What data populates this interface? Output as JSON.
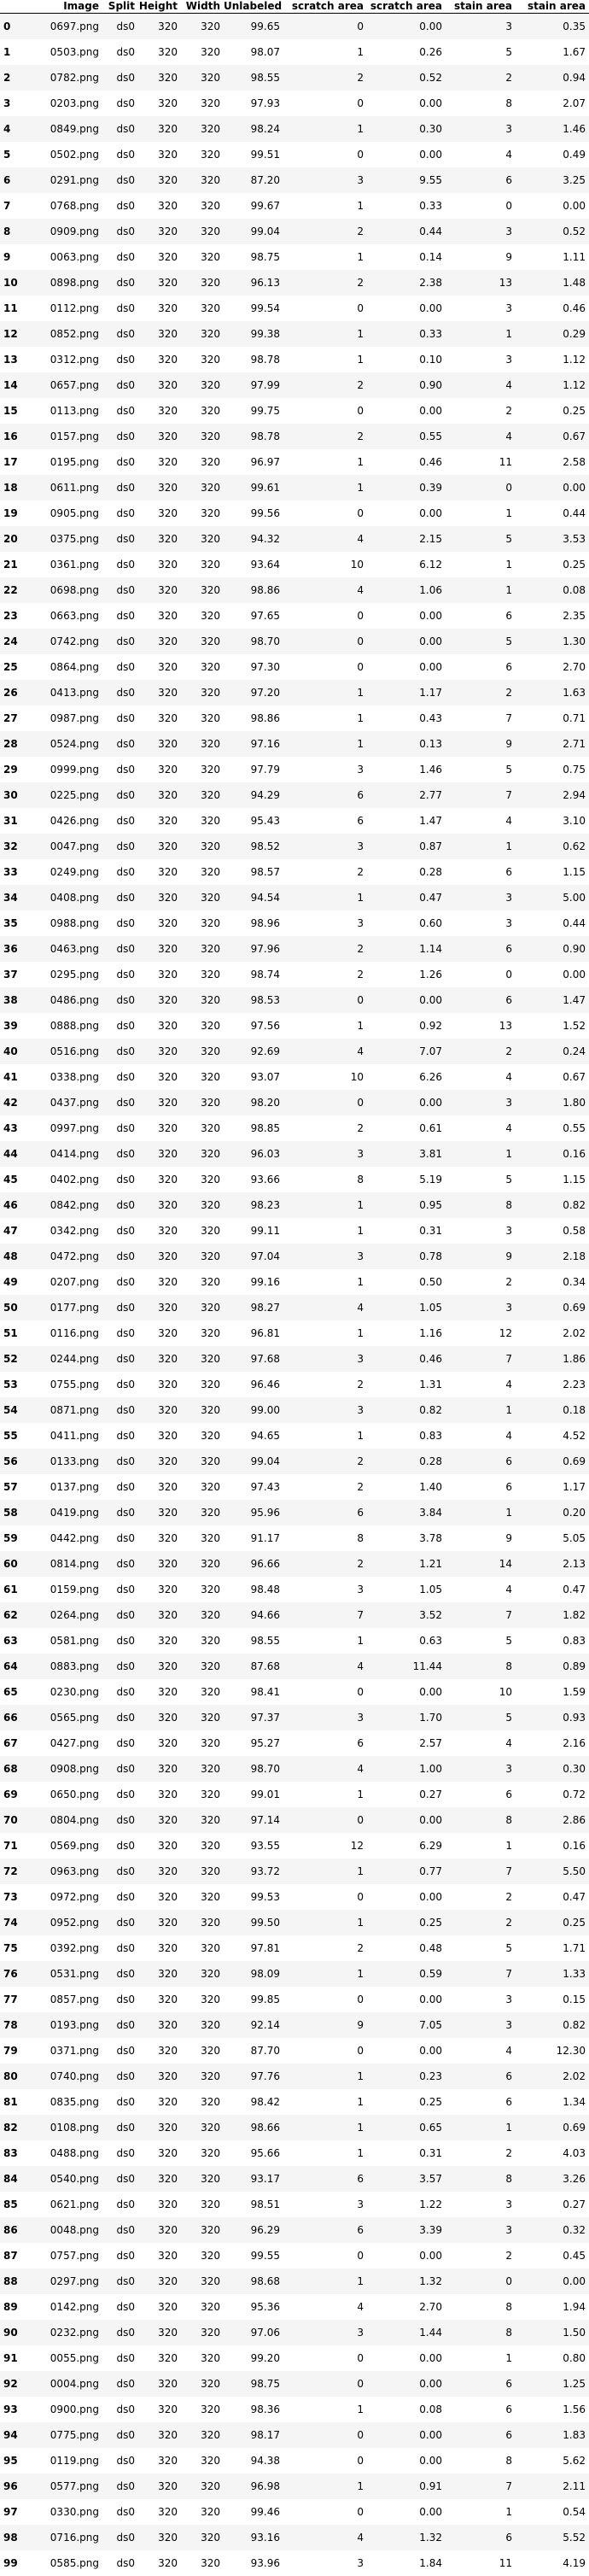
{
  "columns": [
    "",
    "Image",
    "Split",
    "Height",
    "Width",
    "Unlabeled",
    "scratch area",
    "scratch area",
    "stain area",
    "stain area"
  ],
  "rows": [
    [
      "0",
      "0697.png",
      "ds0",
      "320",
      "320",
      "99.65",
      "0",
      "0.00",
      "3",
      "0.35"
    ],
    [
      "1",
      "0503.png",
      "ds0",
      "320",
      "320",
      "98.07",
      "1",
      "0.26",
      "5",
      "1.67"
    ],
    [
      "2",
      "0782.png",
      "ds0",
      "320",
      "320",
      "98.55",
      "2",
      "0.52",
      "2",
      "0.94"
    ],
    [
      "3",
      "0203.png",
      "ds0",
      "320",
      "320",
      "97.93",
      "0",
      "0.00",
      "8",
      "2.07"
    ],
    [
      "4",
      "0849.png",
      "ds0",
      "320",
      "320",
      "98.24",
      "1",
      "0.30",
      "3",
      "1.46"
    ],
    [
      "5",
      "0502.png",
      "ds0",
      "320",
      "320",
      "99.51",
      "0",
      "0.00",
      "4",
      "0.49"
    ],
    [
      "6",
      "0291.png",
      "ds0",
      "320",
      "320",
      "87.20",
      "3",
      "9.55",
      "6",
      "3.25"
    ],
    [
      "7",
      "0768.png",
      "ds0",
      "320",
      "320",
      "99.67",
      "1",
      "0.33",
      "0",
      "0.00"
    ],
    [
      "8",
      "0909.png",
      "ds0",
      "320",
      "320",
      "99.04",
      "2",
      "0.44",
      "3",
      "0.52"
    ],
    [
      "9",
      "0063.png",
      "ds0",
      "320",
      "320",
      "98.75",
      "1",
      "0.14",
      "9",
      "1.11"
    ],
    [
      "10",
      "0898.png",
      "ds0",
      "320",
      "320",
      "96.13",
      "2",
      "2.38",
      "13",
      "1.48"
    ],
    [
      "11",
      "0112.png",
      "ds0",
      "320",
      "320",
      "99.54",
      "0",
      "0.00",
      "3",
      "0.46"
    ],
    [
      "12",
      "0852.png",
      "ds0",
      "320",
      "320",
      "99.38",
      "1",
      "0.33",
      "1",
      "0.29"
    ],
    [
      "13",
      "0312.png",
      "ds0",
      "320",
      "320",
      "98.78",
      "1",
      "0.10",
      "3",
      "1.12"
    ],
    [
      "14",
      "0657.png",
      "ds0",
      "320",
      "320",
      "97.99",
      "2",
      "0.90",
      "4",
      "1.12"
    ],
    [
      "15",
      "0113.png",
      "ds0",
      "320",
      "320",
      "99.75",
      "0",
      "0.00",
      "2",
      "0.25"
    ],
    [
      "16",
      "0157.png",
      "ds0",
      "320",
      "320",
      "98.78",
      "2",
      "0.55",
      "4",
      "0.67"
    ],
    [
      "17",
      "0195.png",
      "ds0",
      "320",
      "320",
      "96.97",
      "1",
      "0.46",
      "11",
      "2.58"
    ],
    [
      "18",
      "0611.png",
      "ds0",
      "320",
      "320",
      "99.61",
      "1",
      "0.39",
      "0",
      "0.00"
    ],
    [
      "19",
      "0905.png",
      "ds0",
      "320",
      "320",
      "99.56",
      "0",
      "0.00",
      "1",
      "0.44"
    ],
    [
      "20",
      "0375.png",
      "ds0",
      "320",
      "320",
      "94.32",
      "4",
      "2.15",
      "5",
      "3.53"
    ],
    [
      "21",
      "0361.png",
      "ds0",
      "320",
      "320",
      "93.64",
      "10",
      "6.12",
      "1",
      "0.25"
    ],
    [
      "22",
      "0698.png",
      "ds0",
      "320",
      "320",
      "98.86",
      "4",
      "1.06",
      "1",
      "0.08"
    ],
    [
      "23",
      "0663.png",
      "ds0",
      "320",
      "320",
      "97.65",
      "0",
      "0.00",
      "6",
      "2.35"
    ],
    [
      "24",
      "0742.png",
      "ds0",
      "320",
      "320",
      "98.70",
      "0",
      "0.00",
      "5",
      "1.30"
    ],
    [
      "25",
      "0864.png",
      "ds0",
      "320",
      "320",
      "97.30",
      "0",
      "0.00",
      "6",
      "2.70"
    ],
    [
      "26",
      "0413.png",
      "ds0",
      "320",
      "320",
      "97.20",
      "1",
      "1.17",
      "2",
      "1.63"
    ],
    [
      "27",
      "0987.png",
      "ds0",
      "320",
      "320",
      "98.86",
      "1",
      "0.43",
      "7",
      "0.71"
    ],
    [
      "28",
      "0524.png",
      "ds0",
      "320",
      "320",
      "97.16",
      "1",
      "0.13",
      "9",
      "2.71"
    ],
    [
      "29",
      "0999.png",
      "ds0",
      "320",
      "320",
      "97.79",
      "3",
      "1.46",
      "5",
      "0.75"
    ],
    [
      "30",
      "0225.png",
      "ds0",
      "320",
      "320",
      "94.29",
      "6",
      "2.77",
      "7",
      "2.94"
    ],
    [
      "31",
      "0426.png",
      "ds0",
      "320",
      "320",
      "95.43",
      "6",
      "1.47",
      "4",
      "3.10"
    ],
    [
      "32",
      "0047.png",
      "ds0",
      "320",
      "320",
      "98.52",
      "3",
      "0.87",
      "1",
      "0.62"
    ],
    [
      "33",
      "0249.png",
      "ds0",
      "320",
      "320",
      "98.57",
      "2",
      "0.28",
      "6",
      "1.15"
    ],
    [
      "34",
      "0408.png",
      "ds0",
      "320",
      "320",
      "94.54",
      "1",
      "0.47",
      "3",
      "5.00"
    ],
    [
      "35",
      "0988.png",
      "ds0",
      "320",
      "320",
      "98.96",
      "3",
      "0.60",
      "3",
      "0.44"
    ],
    [
      "36",
      "0463.png",
      "ds0",
      "320",
      "320",
      "97.96",
      "2",
      "1.14",
      "6",
      "0.90"
    ],
    [
      "37",
      "0295.png",
      "ds0",
      "320",
      "320",
      "98.74",
      "2",
      "1.26",
      "0",
      "0.00"
    ],
    [
      "38",
      "0486.png",
      "ds0",
      "320",
      "320",
      "98.53",
      "0",
      "0.00",
      "6",
      "1.47"
    ],
    [
      "39",
      "0888.png",
      "ds0",
      "320",
      "320",
      "97.56",
      "1",
      "0.92",
      "13",
      "1.52"
    ],
    [
      "40",
      "0516.png",
      "ds0",
      "320",
      "320",
      "92.69",
      "4",
      "7.07",
      "2",
      "0.24"
    ],
    [
      "41",
      "0338.png",
      "ds0",
      "320",
      "320",
      "93.07",
      "10",
      "6.26",
      "4",
      "0.67"
    ],
    [
      "42",
      "0437.png",
      "ds0",
      "320",
      "320",
      "98.20",
      "0",
      "0.00",
      "3",
      "1.80"
    ],
    [
      "43",
      "0997.png",
      "ds0",
      "320",
      "320",
      "98.85",
      "2",
      "0.61",
      "4",
      "0.55"
    ],
    [
      "44",
      "0414.png",
      "ds0",
      "320",
      "320",
      "96.03",
      "3",
      "3.81",
      "1",
      "0.16"
    ],
    [
      "45",
      "0402.png",
      "ds0",
      "320",
      "320",
      "93.66",
      "8",
      "5.19",
      "5",
      "1.15"
    ],
    [
      "46",
      "0842.png",
      "ds0",
      "320",
      "320",
      "98.23",
      "1",
      "0.95",
      "8",
      "0.82"
    ],
    [
      "47",
      "0342.png",
      "ds0",
      "320",
      "320",
      "99.11",
      "1",
      "0.31",
      "3",
      "0.58"
    ],
    [
      "48",
      "0472.png",
      "ds0",
      "320",
      "320",
      "97.04",
      "3",
      "0.78",
      "9",
      "2.18"
    ],
    [
      "49",
      "0207.png",
      "ds0",
      "320",
      "320",
      "99.16",
      "1",
      "0.50",
      "2",
      "0.34"
    ],
    [
      "50",
      "0177.png",
      "ds0",
      "320",
      "320",
      "98.27",
      "4",
      "1.05",
      "3",
      "0.69"
    ],
    [
      "51",
      "0116.png",
      "ds0",
      "320",
      "320",
      "96.81",
      "1",
      "1.16",
      "12",
      "2.02"
    ],
    [
      "52",
      "0244.png",
      "ds0",
      "320",
      "320",
      "97.68",
      "3",
      "0.46",
      "7",
      "1.86"
    ],
    [
      "53",
      "0755.png",
      "ds0",
      "320",
      "320",
      "96.46",
      "2",
      "1.31",
      "4",
      "2.23"
    ],
    [
      "54",
      "0871.png",
      "ds0",
      "320",
      "320",
      "99.00",
      "3",
      "0.82",
      "1",
      "0.18"
    ],
    [
      "55",
      "0411.png",
      "ds0",
      "320",
      "320",
      "94.65",
      "1",
      "0.83",
      "4",
      "4.52"
    ],
    [
      "56",
      "0133.png",
      "ds0",
      "320",
      "320",
      "99.04",
      "2",
      "0.28",
      "6",
      "0.69"
    ],
    [
      "57",
      "0137.png",
      "ds0",
      "320",
      "320",
      "97.43",
      "2",
      "1.40",
      "6",
      "1.17"
    ],
    [
      "58",
      "0419.png",
      "ds0",
      "320",
      "320",
      "95.96",
      "6",
      "3.84",
      "1",
      "0.20"
    ],
    [
      "59",
      "0442.png",
      "ds0",
      "320",
      "320",
      "91.17",
      "8",
      "3.78",
      "9",
      "5.05"
    ],
    [
      "60",
      "0814.png",
      "ds0",
      "320",
      "320",
      "96.66",
      "2",
      "1.21",
      "14",
      "2.13"
    ],
    [
      "61",
      "0159.png",
      "ds0",
      "320",
      "320",
      "98.48",
      "3",
      "1.05",
      "4",
      "0.47"
    ],
    [
      "62",
      "0264.png",
      "ds0",
      "320",
      "320",
      "94.66",
      "7",
      "3.52",
      "7",
      "1.82"
    ],
    [
      "63",
      "0581.png",
      "ds0",
      "320",
      "320",
      "98.55",
      "1",
      "0.63",
      "5",
      "0.83"
    ],
    [
      "64",
      "0883.png",
      "ds0",
      "320",
      "320",
      "87.68",
      "4",
      "11.44",
      "8",
      "0.89"
    ],
    [
      "65",
      "0230.png",
      "ds0",
      "320",
      "320",
      "98.41",
      "0",
      "0.00",
      "10",
      "1.59"
    ],
    [
      "66",
      "0565.png",
      "ds0",
      "320",
      "320",
      "97.37",
      "3",
      "1.70",
      "5",
      "0.93"
    ],
    [
      "67",
      "0427.png",
      "ds0",
      "320",
      "320",
      "95.27",
      "6",
      "2.57",
      "4",
      "2.16"
    ],
    [
      "68",
      "0908.png",
      "ds0",
      "320",
      "320",
      "98.70",
      "4",
      "1.00",
      "3",
      "0.30"
    ],
    [
      "69",
      "0650.png",
      "ds0",
      "320",
      "320",
      "99.01",
      "1",
      "0.27",
      "6",
      "0.72"
    ],
    [
      "70",
      "0804.png",
      "ds0",
      "320",
      "320",
      "97.14",
      "0",
      "0.00",
      "8",
      "2.86"
    ],
    [
      "71",
      "0569.png",
      "ds0",
      "320",
      "320",
      "93.55",
      "12",
      "6.29",
      "1",
      "0.16"
    ],
    [
      "72",
      "0963.png",
      "ds0",
      "320",
      "320",
      "93.72",
      "1",
      "0.77",
      "7",
      "5.50"
    ],
    [
      "73",
      "0972.png",
      "ds0",
      "320",
      "320",
      "99.53",
      "0",
      "0.00",
      "2",
      "0.47"
    ],
    [
      "74",
      "0952.png",
      "ds0",
      "320",
      "320",
      "99.50",
      "1",
      "0.25",
      "2",
      "0.25"
    ],
    [
      "75",
      "0392.png",
      "ds0",
      "320",
      "320",
      "97.81",
      "2",
      "0.48",
      "5",
      "1.71"
    ],
    [
      "76",
      "0531.png",
      "ds0",
      "320",
      "320",
      "98.09",
      "1",
      "0.59",
      "7",
      "1.33"
    ],
    [
      "77",
      "0857.png",
      "ds0",
      "320",
      "320",
      "99.85",
      "0",
      "0.00",
      "3",
      "0.15"
    ],
    [
      "78",
      "0193.png",
      "ds0",
      "320",
      "320",
      "92.14",
      "9",
      "7.05",
      "3",
      "0.82"
    ],
    [
      "79",
      "0371.png",
      "ds0",
      "320",
      "320",
      "87.70",
      "0",
      "0.00",
      "4",
      "12.30"
    ],
    [
      "80",
      "0740.png",
      "ds0",
      "320",
      "320",
      "97.76",
      "1",
      "0.23",
      "6",
      "2.02"
    ],
    [
      "81",
      "0835.png",
      "ds0",
      "320",
      "320",
      "98.42",
      "1",
      "0.25",
      "6",
      "1.34"
    ],
    [
      "82",
      "0108.png",
      "ds0",
      "320",
      "320",
      "98.66",
      "1",
      "0.65",
      "1",
      "0.69"
    ],
    [
      "83",
      "0488.png",
      "ds0",
      "320",
      "320",
      "95.66",
      "1",
      "0.31",
      "2",
      "4.03"
    ],
    [
      "84",
      "0540.png",
      "ds0",
      "320",
      "320",
      "93.17",
      "6",
      "3.57",
      "8",
      "3.26"
    ],
    [
      "85",
      "0621.png",
      "ds0",
      "320",
      "320",
      "98.51",
      "3",
      "1.22",
      "3",
      "0.27"
    ],
    [
      "86",
      "0048.png",
      "ds0",
      "320",
      "320",
      "96.29",
      "6",
      "3.39",
      "3",
      "0.32"
    ],
    [
      "87",
      "0757.png",
      "ds0",
      "320",
      "320",
      "99.55",
      "0",
      "0.00",
      "2",
      "0.45"
    ],
    [
      "88",
      "0297.png",
      "ds0",
      "320",
      "320",
      "98.68",
      "1",
      "1.32",
      "0",
      "0.00"
    ],
    [
      "89",
      "0142.png",
      "ds0",
      "320",
      "320",
      "95.36",
      "4",
      "2.70",
      "8",
      "1.94"
    ],
    [
      "90",
      "0232.png",
      "ds0",
      "320",
      "320",
      "97.06",
      "3",
      "1.44",
      "8",
      "1.50"
    ],
    [
      "91",
      "0055.png",
      "ds0",
      "320",
      "320",
      "99.20",
      "0",
      "0.00",
      "1",
      "0.80"
    ],
    [
      "92",
      "0004.png",
      "ds0",
      "320",
      "320",
      "98.75",
      "0",
      "0.00",
      "6",
      "1.25"
    ],
    [
      "93",
      "0900.png",
      "ds0",
      "320",
      "320",
      "98.36",
      "1",
      "0.08",
      "6",
      "1.56"
    ],
    [
      "94",
      "0775.png",
      "ds0",
      "320",
      "320",
      "98.17",
      "0",
      "0.00",
      "6",
      "1.83"
    ],
    [
      "95",
      "0119.png",
      "ds0",
      "320",
      "320",
      "94.38",
      "0",
      "0.00",
      "8",
      "5.62"
    ],
    [
      "96",
      "0577.png",
      "ds0",
      "320",
      "320",
      "96.98",
      "1",
      "0.91",
      "7",
      "2.11"
    ],
    [
      "97",
      "0330.png",
      "ds0",
      "320",
      "320",
      "99.46",
      "0",
      "0.00",
      "1",
      "0.54"
    ],
    [
      "98",
      "0716.png",
      "ds0",
      "320",
      "320",
      "93.16",
      "4",
      "1.32",
      "6",
      "5.52"
    ],
    [
      "99",
      "0585.png",
      "ds0",
      "320",
      "320",
      "93.96",
      "3",
      "1.84",
      "11",
      "4.19"
    ]
  ]
}
